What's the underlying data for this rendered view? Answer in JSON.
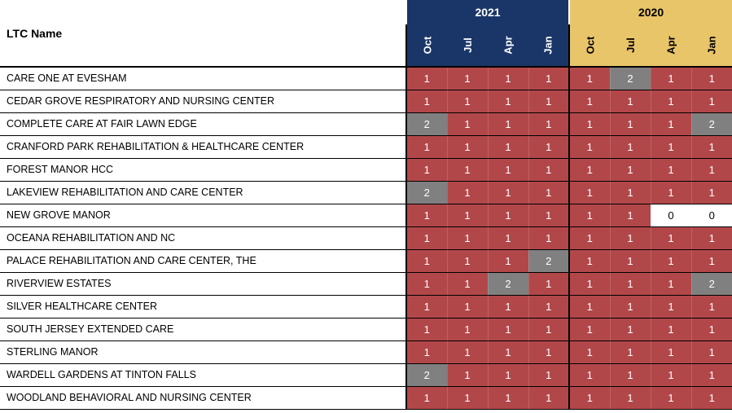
{
  "table": {
    "name_header": "LTC Name",
    "year_groups": [
      {
        "label": "2021",
        "months": [
          "Oct",
          "Jul",
          "Apr",
          "Jan"
        ],
        "header_bg": "#1a3668",
        "header_fg": "#ffffff"
      },
      {
        "label": "2020",
        "months": [
          "Oct",
          "Jul",
          "Apr",
          "Jan"
        ],
        "header_bg": "#e9c56a",
        "header_fg": "#000000"
      }
    ],
    "cell_colors": {
      "1": "#b2474a",
      "2": "#808080",
      "0": "#ffffff"
    },
    "cell_text_colors": {
      "1": "#ffffff",
      "2": "#ffffff",
      "0": "#000000"
    },
    "row_border_color": "#000000",
    "rows": [
      {
        "name": "CARE ONE AT EVESHAM",
        "values": [
          1,
          1,
          1,
          1,
          1,
          2,
          1,
          1
        ]
      },
      {
        "name": "CEDAR GROVE RESPIRATORY AND NURSING CENTER",
        "values": [
          1,
          1,
          1,
          1,
          1,
          1,
          1,
          1
        ]
      },
      {
        "name": "COMPLETE CARE AT FAIR LAWN EDGE",
        "values": [
          2,
          1,
          1,
          1,
          1,
          1,
          1,
          2
        ]
      },
      {
        "name": "CRANFORD PARK REHABILITATION & HEALTHCARE CENTER",
        "values": [
          1,
          1,
          1,
          1,
          1,
          1,
          1,
          1
        ]
      },
      {
        "name": "FOREST MANOR HCC",
        "values": [
          1,
          1,
          1,
          1,
          1,
          1,
          1,
          1
        ]
      },
      {
        "name": "LAKEVIEW REHABILITATION AND CARE CENTER",
        "values": [
          2,
          1,
          1,
          1,
          1,
          1,
          1,
          1
        ]
      },
      {
        "name": "NEW GROVE MANOR",
        "values": [
          1,
          1,
          1,
          1,
          1,
          1,
          0,
          0
        ]
      },
      {
        "name": "OCEANA REHABILITATION AND NC",
        "values": [
          1,
          1,
          1,
          1,
          1,
          1,
          1,
          1
        ]
      },
      {
        "name": "PALACE REHABILITATION AND CARE CENTER, THE",
        "values": [
          1,
          1,
          1,
          2,
          1,
          1,
          1,
          1
        ]
      },
      {
        "name": "RIVERVIEW ESTATES",
        "values": [
          1,
          1,
          2,
          1,
          1,
          1,
          1,
          2
        ]
      },
      {
        "name": "SILVER HEALTHCARE CENTER",
        "values": [
          1,
          1,
          1,
          1,
          1,
          1,
          1,
          1
        ]
      },
      {
        "name": "SOUTH JERSEY EXTENDED CARE",
        "values": [
          1,
          1,
          1,
          1,
          1,
          1,
          1,
          1
        ]
      },
      {
        "name": "STERLING MANOR",
        "values": [
          1,
          1,
          1,
          1,
          1,
          1,
          1,
          1
        ]
      },
      {
        "name": "WARDELL GARDENS AT TINTON FALLS",
        "values": [
          2,
          1,
          1,
          1,
          1,
          1,
          1,
          1
        ]
      },
      {
        "name": "WOODLAND BEHAVIORAL AND NURSING CENTER",
        "values": [
          1,
          1,
          1,
          1,
          1,
          1,
          1,
          1
        ]
      }
    ]
  }
}
